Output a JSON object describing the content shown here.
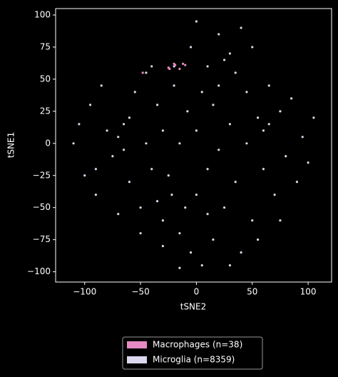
{
  "chart_data": {
    "type": "scatter",
    "xlabel": "tSNE2",
    "ylabel": "tSNE1",
    "xlim": [
      -126,
      121
    ],
    "ylim": [
      -108,
      105
    ],
    "xticks": [
      {
        "value": -100,
        "label": "−100"
      },
      {
        "value": -50,
        "label": "−50"
      },
      0,
      50,
      100
    ],
    "yticks": [
      {
        "value": -100,
        "label": "−100"
      },
      {
        "value": -75,
        "label": "−75"
      },
      {
        "value": -50,
        "label": "−50"
      },
      {
        "value": -25,
        "label": "−25"
      },
      0,
      25,
      50,
      75,
      100
    ],
    "legend": "lower center",
    "series": [
      {
        "name": "Macrophages (n=38)",
        "color": "#e78ac3",
        "x": [
          -25,
          -20,
          -19,
          -12,
          -10,
          -48,
          -15,
          -24
        ],
        "y": [
          59,
          62,
          61,
          62,
          61,
          55,
          58,
          58
        ]
      },
      {
        "name": "Microglia (n=8359)",
        "color": "#dcd6ee",
        "x": [
          -110,
          -105,
          -100,
          -95,
          -90,
          -85,
          -80,
          -75,
          -70,
          -65,
          -60,
          -60,
          -55,
          -50,
          -45,
          -45,
          -40,
          -35,
          -30,
          -30,
          -25,
          -22,
          -20,
          -15,
          -15,
          -10,
          -8,
          -5,
          0,
          0,
          5,
          5,
          10,
          10,
          15,
          15,
          20,
          20,
          25,
          25,
          30,
          30,
          35,
          35,
          40,
          40,
          45,
          45,
          50,
          55,
          60,
          60,
          65,
          70,
          75,
          80,
          85,
          90,
          95,
          100,
          105,
          -30,
          -50,
          -70,
          -90,
          10,
          -35,
          30,
          55,
          75,
          -5,
          -40,
          0,
          20,
          -20,
          50,
          -65,
          65,
          -15
        ],
        "y": [
          0,
          15,
          -25,
          30,
          -40,
          45,
          10,
          -10,
          5,
          -5,
          20,
          -30,
          40,
          -50,
          55,
          0,
          -20,
          30,
          -60,
          10,
          -25,
          -40,
          45,
          -70,
          0,
          -50,
          25,
          -85,
          -40,
          10,
          -95,
          40,
          -20,
          60,
          -75,
          30,
          -5,
          85,
          -50,
          65,
          70,
          15,
          -30,
          55,
          90,
          -85,
          0,
          40,
          -60,
          20,
          -20,
          10,
          45,
          -40,
          25,
          -10,
          35,
          -30,
          5,
          -15,
          20,
          -80,
          -70,
          -55,
          -20,
          -55,
          -45,
          -95,
          -75,
          -60,
          75,
          60,
          95,
          45,
          60,
          75,
          15,
          15,
          -97
        ]
      }
    ]
  }
}
